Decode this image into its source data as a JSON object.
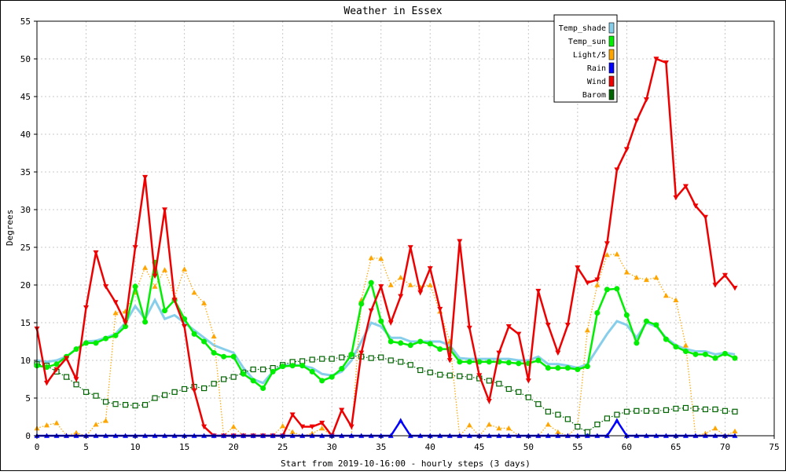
{
  "chart_data": {
    "type": "line",
    "title": "Weather in Essex",
    "xlabel": "Start from 2019-10-16:00 - hourly steps (3 days)",
    "ylabel": "Degrees",
    "xlim": [
      0,
      75
    ],
    "ylim": [
      0,
      55
    ],
    "x_ticks": [
      0,
      5,
      10,
      15,
      20,
      25,
      30,
      35,
      40,
      45,
      50,
      55,
      60,
      65,
      70,
      75
    ],
    "y_ticks": [
      0,
      5,
      10,
      15,
      20,
      25,
      30,
      35,
      40,
      45,
      50,
      55
    ],
    "grid": true,
    "legend_position": "top-right",
    "x": [
      0,
      1,
      2,
      3,
      4,
      5,
      6,
      7,
      8,
      9,
      10,
      11,
      12,
      13,
      14,
      15,
      16,
      17,
      18,
      19,
      20,
      21,
      22,
      23,
      24,
      25,
      26,
      27,
      28,
      29,
      30,
      31,
      32,
      33,
      34,
      35,
      36,
      37,
      38,
      39,
      40,
      41,
      42,
      43,
      44,
      45,
      46,
      47,
      48,
      49,
      50,
      51,
      52,
      53,
      54,
      55,
      56,
      57,
      58,
      59,
      60,
      61,
      62,
      63,
      64,
      65,
      66,
      67,
      68,
      69,
      70,
      71
    ],
    "series": [
      {
        "name": "Temp_shade",
        "color": "#87ceeb",
        "marker": "none",
        "line": "solid",
        "values": [
          10,
          9.8,
          10,
          10.5,
          11.5,
          12.5,
          12.6,
          13,
          13.5,
          15,
          17.2,
          15.5,
          18,
          15.5,
          16,
          15,
          14,
          13,
          12,
          11.5,
          11,
          9,
          7.5,
          7,
          8.5,
          9.3,
          9.4,
          9.3,
          9,
          8.2,
          8,
          8.5,
          10,
          12.5,
          15,
          14.5,
          13,
          13,
          12.5,
          12.5,
          12.5,
          12.5,
          12,
          10.3,
          10.2,
          10.2,
          10.2,
          10.2,
          10.2,
          10,
          10,
          10.5,
          9.5,
          9.5,
          9.3,
          9,
          9.5,
          11.5,
          13.5,
          15.2,
          14.7,
          13,
          15,
          14.5,
          13,
          12,
          11.5,
          11.2,
          11.2,
          10.8,
          11,
          10.8
        ]
      },
      {
        "name": "Temp_sun",
        "color": "#00ee00",
        "marker": "circle",
        "line": "solid",
        "values": [
          9.3,
          9.1,
          9.5,
          10.5,
          11.5,
          12.3,
          12.3,
          12.9,
          13.3,
          14.5,
          19.8,
          15.1,
          23,
          16.6,
          18,
          15.5,
          13.5,
          12.5,
          11,
          10.5,
          10.5,
          8.2,
          7.3,
          6.3,
          8.5,
          9.2,
          9.3,
          9.3,
          8.5,
          7.3,
          7.8,
          8.9,
          10.8,
          17.5,
          20.3,
          15.2,
          12.5,
          12.3,
          12,
          12.5,
          12.2,
          11.5,
          11.5,
          9.8,
          9.8,
          9.8,
          9.8,
          9.8,
          9.7,
          9.6,
          9.6,
          10,
          9,
          9,
          9,
          8.8,
          9.2,
          16.3,
          19.4,
          19.5,
          16,
          12.3,
          15.2,
          14.7,
          12.8,
          11.8,
          11.2,
          10.8,
          10.8,
          10.3,
          10.9,
          10.3
        ]
      },
      {
        "name": "Light/5",
        "color": "#ffa500",
        "marker": "triangle",
        "line": "dotted",
        "values": [
          1,
          1.4,
          1.7,
          0,
          0.4,
          0,
          1.5,
          2,
          16.3,
          16.5,
          19,
          22.3,
          19.8,
          22,
          18.4,
          22.1,
          19,
          17.6,
          13.2,
          0,
          1.2,
          0,
          0,
          0,
          0,
          1.3,
          0.5,
          0,
          0.3,
          1,
          0,
          0,
          0,
          18,
          23.6,
          23.5,
          20,
          21,
          20,
          19.7,
          20,
          16.5,
          12.5,
          0,
          1.4,
          0,
          1.5,
          1,
          1,
          0,
          0,
          0,
          1.5,
          0.5,
          0,
          1.2,
          14,
          20,
          24,
          24.1,
          21.7,
          21,
          20.7,
          21,
          18.6,
          18,
          12,
          0,
          0.3,
          1,
          0,
          0.6
        ]
      },
      {
        "name": "Rain",
        "color": "#0000ff",
        "marker": "triangle",
        "line": "solid",
        "values": [
          0,
          0,
          0,
          0,
          0,
          0,
          0,
          0,
          0,
          0,
          0,
          0,
          0,
          0,
          0,
          0,
          0,
          0,
          0,
          0,
          0,
          0,
          0,
          0,
          0,
          0,
          0,
          0,
          0,
          0,
          0,
          0,
          0,
          0,
          0,
          0,
          0,
          2,
          0,
          0,
          0,
          0,
          0,
          0,
          0,
          0,
          0,
          0,
          0,
          0,
          0,
          0,
          0,
          0,
          0,
          0,
          0,
          0,
          0,
          2,
          0,
          0,
          0,
          0,
          0,
          0,
          0,
          0,
          0,
          0,
          0,
          0
        ]
      },
      {
        "name": "Wind",
        "color": "#ee0000",
        "marker": "triangle-down",
        "line": "solid",
        "values": [
          14.2,
          7,
          8.8,
          10.3,
          7.5,
          17,
          24.3,
          19.8,
          17.7,
          15,
          25,
          34.3,
          21.2,
          30,
          18,
          14.5,
          6,
          1.2,
          0,
          0,
          0,
          0,
          0,
          0,
          0,
          0,
          2.8,
          1.2,
          1.2,
          1.7,
          0,
          3.4,
          1.2,
          11,
          16.6,
          19.8,
          15,
          18.5,
          25,
          19,
          22.2,
          16.8,
          10,
          25.8,
          14.3,
          8,
          4.6,
          11,
          14.5,
          13.5,
          7.3,
          19.2,
          14.7,
          11,
          14.7,
          22.3,
          20.3,
          20.7,
          25.5,
          35.3,
          38,
          41.8,
          44.6,
          50,
          49.5,
          31.6,
          33.1,
          30.5,
          29,
          20,
          21.3,
          19.6
        ]
      },
      {
        "name": "Barom",
        "color": "#006400",
        "marker": "square",
        "line": "dotted",
        "values": [
          9.5,
          9.3,
          8.5,
          7.8,
          6.8,
          5.8,
          5.3,
          4.5,
          4.2,
          4.1,
          4,
          4.1,
          5,
          5.4,
          5.8,
          6.2,
          6.5,
          6.3,
          6.9,
          7.5,
          7.8,
          8.4,
          8.8,
          8.8,
          9,
          9.4,
          9.8,
          9.9,
          10.1,
          10.2,
          10.2,
          10.4,
          10.6,
          10.5,
          10.3,
          10.4,
          10,
          9.8,
          9.4,
          8.7,
          8.4,
          8.1,
          8,
          7.9,
          7.8,
          7.6,
          7.3,
          6.9,
          6.2,
          5.8,
          5.1,
          4.2,
          3.2,
          2.8,
          2.2,
          1.2,
          0.5,
          1.5,
          2.3,
          2.8,
          3.2,
          3.3,
          3.3,
          3.3,
          3.4,
          3.6,
          3.7,
          3.6,
          3.5,
          3.5,
          3.3,
          3.2
        ]
      }
    ]
  }
}
